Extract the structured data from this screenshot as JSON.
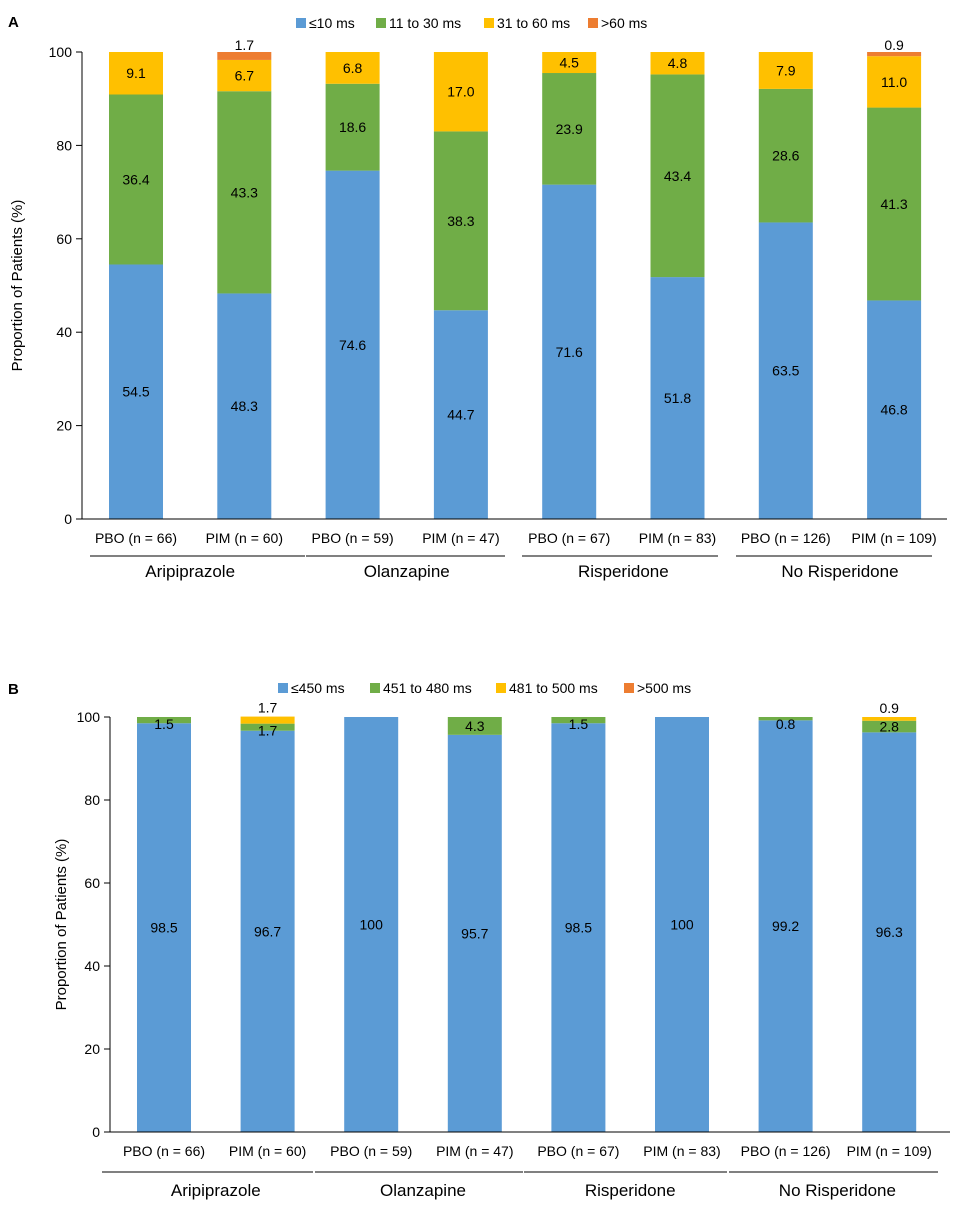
{
  "chart_data": [
    {
      "panel_label": "A",
      "type": "bar",
      "stacked": true,
      "ylabel": "Proportion of Patients (%)",
      "ylim": [
        0,
        100
      ],
      "yticks": [
        "0",
        "20",
        "40",
        "60",
        "80",
        "100"
      ],
      "legend_position": "top",
      "categories": [
        "PBO (n = 66)",
        "PIM (n = 60)",
        "PBO (n = 59)",
        "PIM (n = 47)",
        "PBO (n = 67)",
        "PIM (n = 83)",
        "PBO (n = 126)",
        "PIM (n = 109)"
      ],
      "groups": [
        "Aripiprazole",
        "Olanzapine",
        "Risperidone",
        "No Risperidone"
      ],
      "series": [
        {
          "name": "≤10 ms",
          "color": "#5B9BD5",
          "values": [
            54.5,
            48.3,
            74.6,
            44.7,
            71.6,
            51.8,
            63.5,
            46.8
          ],
          "labels": [
            "54.5",
            "48.3",
            "74.6",
            "44.7",
            "71.6",
            "51.8",
            "63.5",
            "46.8"
          ]
        },
        {
          "name": "11 to 30 ms",
          "color": "#70AD47",
          "values": [
            36.4,
            43.3,
            18.6,
            38.3,
            23.9,
            43.4,
            28.6,
            41.3
          ],
          "labels": [
            "36.4",
            "43.3",
            "18.6",
            "38.3",
            "23.9",
            "43.4",
            "28.6",
            "41.3"
          ]
        },
        {
          "name": "31 to 60 ms",
          "color": "#FFC000",
          "values": [
            9.1,
            6.7,
            6.8,
            17.0,
            4.5,
            4.8,
            7.9,
            11.0
          ],
          "labels": [
            "9.1",
            "6.7",
            "6.8",
            "17.0",
            "4.5",
            "4.8",
            "7.9",
            "11.0"
          ]
        },
        {
          "name": ">60 ms",
          "color": "#ED7D31",
          "values": [
            0,
            1.7,
            0,
            0,
            0,
            0,
            0,
            0.9
          ],
          "labels": [
            "",
            "1.7",
            "",
            "",
            "",
            "",
            "",
            "0.9"
          ]
        }
      ]
    },
    {
      "panel_label": "B",
      "type": "bar",
      "stacked": true,
      "ylabel": "Proportion of Patients (%)",
      "ylim": [
        0,
        100
      ],
      "yticks": [
        "0",
        "20",
        "40",
        "60",
        "80",
        "100"
      ],
      "legend_position": "top",
      "categories": [
        "PBO (n = 66)",
        "PIM (n = 60)",
        "PBO (n = 59)",
        "PIM (n = 47)",
        "PBO (n = 67)",
        "PIM (n = 83)",
        "PBO (n = 126)",
        "PIM (n = 109)"
      ],
      "groups": [
        "Aripiprazole",
        "Olanzapine",
        "Risperidone",
        "No Risperidone"
      ],
      "series": [
        {
          "name": "≤450 ms",
          "color": "#5B9BD5",
          "values": [
            98.5,
            96.7,
            100,
            95.7,
            98.5,
            100,
            99.2,
            96.3
          ],
          "labels": [
            "98.5",
            "96.7",
            "100",
            "95.7",
            "98.5",
            "100",
            "99.2",
            "96.3"
          ]
        },
        {
          "name": "451 to 480 ms",
          "color": "#70AD47",
          "values": [
            1.5,
            1.7,
            0,
            4.3,
            1.5,
            0,
            0.8,
            2.8
          ],
          "labels": [
            "1.5",
            "1.7",
            "",
            "4.3",
            "1.5",
            "",
            "0.8",
            "2.8"
          ]
        },
        {
          "name": "481 to 500 ms",
          "color": "#FFC000",
          "values": [
            0,
            1.7,
            0,
            0,
            0,
            0,
            0,
            0.9
          ],
          "labels": [
            "",
            "1.7",
            "",
            "",
            "",
            "",
            "",
            "0.9"
          ]
        },
        {
          "name": ">500 ms",
          "color": "#ED7D31",
          "values": [
            0,
            0,
            0,
            0,
            0,
            0,
            0,
            0
          ],
          "labels": [
            "",
            "",
            "",
            "",
            "",
            "",
            "",
            ""
          ]
        }
      ]
    }
  ]
}
